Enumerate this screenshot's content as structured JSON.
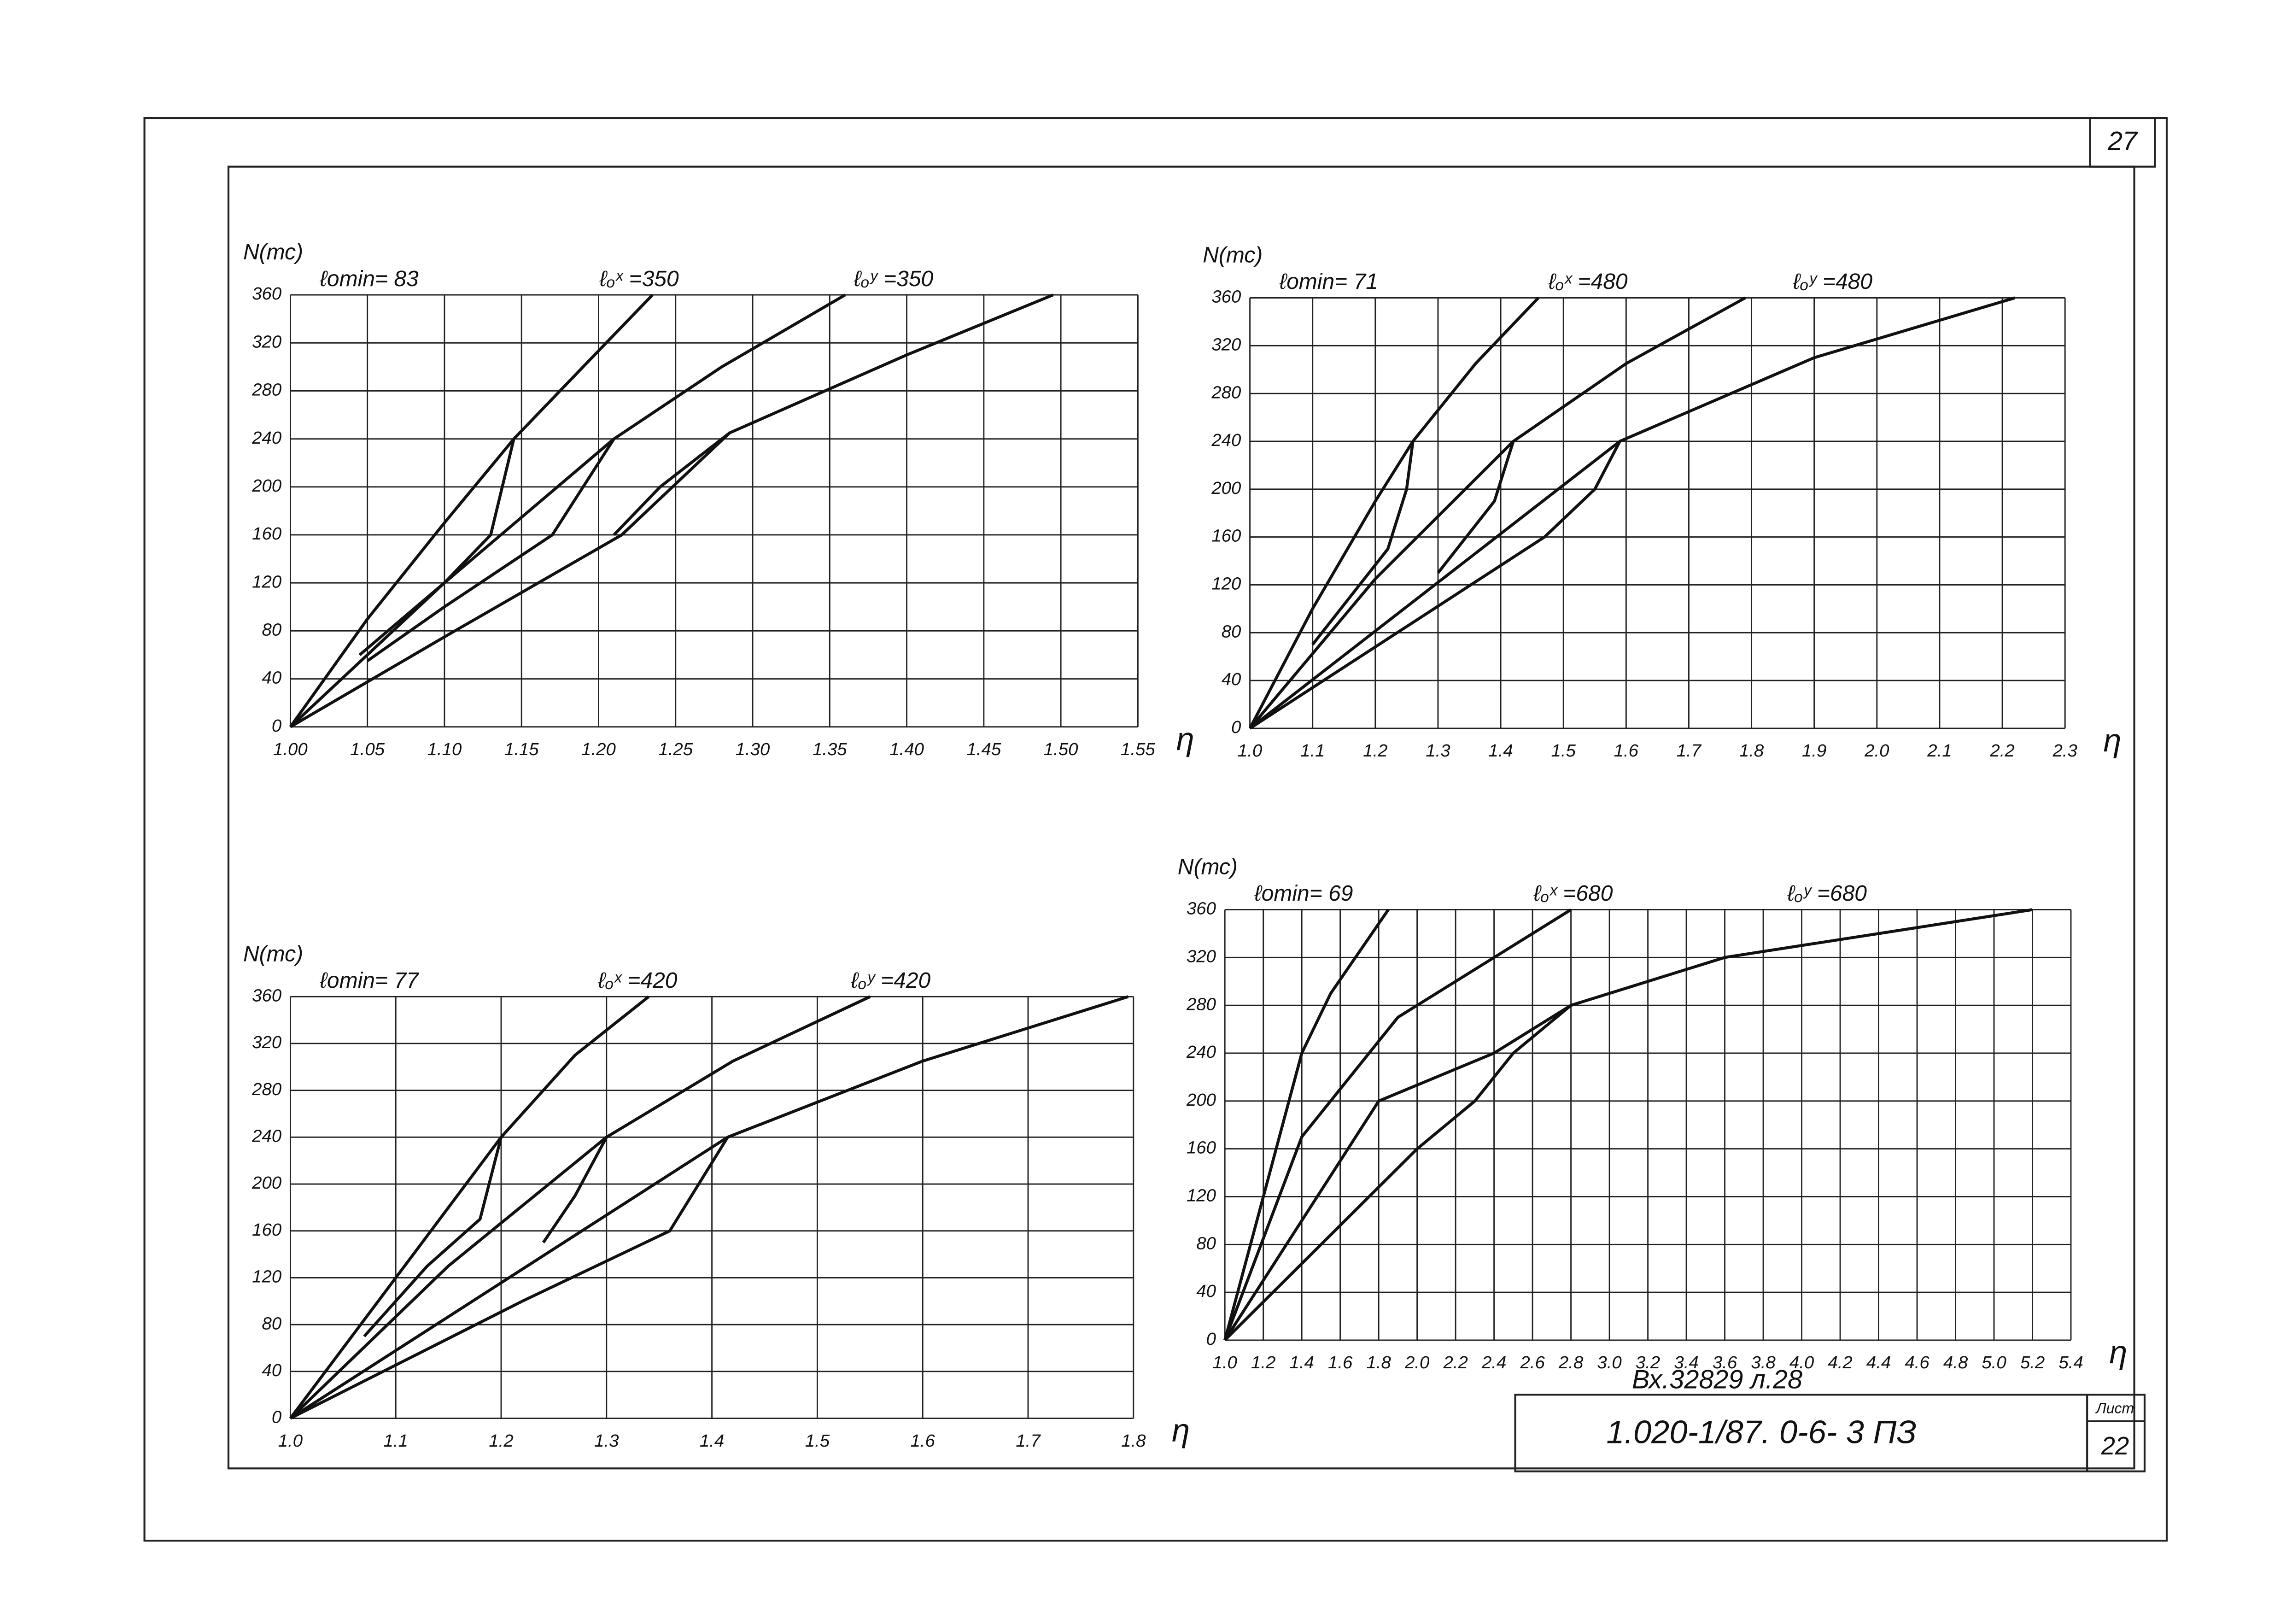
{
  "chart_data": [
    {
      "type": "line",
      "y_label": "N(тс)",
      "x_label": "η",
      "annotations": [
        "ℓomin= 83",
        "ℓₒˣ =350",
        "ℓₒʸ =350"
      ],
      "xlim": [
        1.0,
        1.55
      ],
      "ylim": [
        0,
        360
      ],
      "grid": true,
      "xticks": [
        {
          "value": 1.0,
          "label": "1.00"
        },
        1.05,
        {
          "value": 1.1,
          "label": "1.10"
        },
        1.15,
        {
          "value": 1.2,
          "label": "1.20"
        },
        1.25,
        {
          "value": 1.3,
          "label": "1.30"
        },
        1.35,
        {
          "value": 1.4,
          "label": "1.40"
        },
        1.45,
        {
          "value": 1.5,
          "label": "1.50"
        },
        1.55
      ],
      "yticks": [
        0,
        40,
        80,
        120,
        160,
        200,
        240,
        280,
        320,
        360
      ],
      "series": [
        {
          "color": "#111",
          "x": [
            1.0,
            1.05,
            1.1,
            1.145,
            1.19,
            1.235
          ],
          "values": [
            0,
            90,
            170,
            240,
            300,
            360
          ]
        },
        {
          "color": "#111",
          "x": [
            1.0,
            1.1,
            1.21,
            1.28,
            1.36
          ],
          "values": [
            0,
            120,
            240,
            300,
            360
          ]
        },
        {
          "color": "#111",
          "x": [
            1.0,
            1.1,
            1.215,
            1.285,
            1.4,
            1.495
          ],
          "values": [
            0,
            75,
            160,
            245,
            310,
            360
          ]
        },
        {
          "color": "#111",
          "x": [
            1.045,
            1.1,
            1.13,
            1.145
          ],
          "values": [
            60,
            120,
            160,
            240
          ]
        },
        {
          "color": "#111",
          "x": [
            1.05,
            1.1,
            1.17,
            1.21
          ],
          "values": [
            55,
            100,
            160,
            240
          ]
        },
        {
          "color": "#111",
          "x": [
            1.21,
            1.24,
            1.285
          ],
          "values": [
            160,
            200,
            245
          ]
        }
      ]
    },
    {
      "type": "line",
      "y_label": "N(тс)",
      "x_label": "η",
      "annotations": [
        "ℓomin= 71",
        "ℓₒˣ =480",
        "ℓₒʸ =480"
      ],
      "xlim": [
        1.0,
        2.3
      ],
      "ylim": [
        0,
        360
      ],
      "grid": true,
      "xticks": [
        {
          "value": 1.0,
          "label": "1.0"
        },
        1.1,
        1.2,
        1.3,
        1.4,
        1.5,
        1.6,
        1.7,
        1.8,
        1.9,
        {
          "value": 2.0,
          "label": "2.0"
        },
        2.1,
        2.2,
        2.3
      ],
      "yticks": [
        0,
        40,
        80,
        120,
        160,
        200,
        240,
        280,
        320,
        360
      ],
      "series": [
        {
          "color": "#111",
          "x": [
            1.0,
            1.1,
            1.2,
            1.26,
            1.36,
            1.46
          ],
          "values": [
            0,
            100,
            190,
            240,
            305,
            360
          ]
        },
        {
          "color": "#111",
          "x": [
            1.0,
            1.2,
            1.42,
            1.6,
            1.79
          ],
          "values": [
            0,
            125,
            240,
            305,
            360
          ]
        },
        {
          "color": "#111",
          "x": [
            1.0,
            1.59,
            1.9,
            2.22
          ],
          "values": [
            0,
            240,
            310,
            360
          ]
        },
        {
          "color": "#111",
          "x": [
            1.1,
            1.22,
            1.25,
            1.26
          ],
          "values": [
            70,
            150,
            200,
            240
          ]
        },
        {
          "color": "#111",
          "x": [
            1.3,
            1.39,
            1.42
          ],
          "values": [
            130,
            190,
            240
          ]
        },
        {
          "color": "#111",
          "x": [
            1.0,
            1.47,
            1.55,
            1.59
          ],
          "values": [
            0,
            160,
            200,
            240
          ]
        }
      ]
    },
    {
      "type": "line",
      "y_label": "N(тс)",
      "x_label": "η",
      "annotations": [
        "ℓomin= 77",
        "ℓₒˣ =420",
        "ℓₒʸ =420"
      ],
      "xlim": [
        1.0,
        1.8
      ],
      "ylim": [
        0,
        360
      ],
      "grid": true,
      "xticks": [
        {
          "value": 1.0,
          "label": "1.0"
        },
        1.1,
        1.2,
        1.3,
        1.4,
        1.5,
        1.6,
        1.7,
        1.8
      ],
      "yticks": [
        0,
        40,
        80,
        120,
        160,
        200,
        240,
        280,
        320,
        360
      ],
      "series": [
        {
          "color": "#111",
          "x": [
            1.0,
            1.1,
            1.2,
            1.27,
            1.34
          ],
          "values": [
            0,
            120,
            240,
            310,
            360
          ]
        },
        {
          "color": "#111",
          "x": [
            1.0,
            1.15,
            1.3,
            1.42,
            1.55
          ],
          "values": [
            0,
            130,
            240,
            305,
            360
          ]
        },
        {
          "color": "#111",
          "x": [
            1.0,
            1.415,
            1.6,
            1.795
          ],
          "values": [
            0,
            240,
            305,
            360
          ]
        },
        {
          "color": "#111",
          "x": [
            1.07,
            1.13,
            1.18,
            1.2
          ],
          "values": [
            70,
            130,
            170,
            240
          ]
        },
        {
          "color": "#111",
          "x": [
            1.24,
            1.27,
            1.3
          ],
          "values": [
            150,
            190,
            240
          ]
        },
        {
          "color": "#111",
          "x": [
            1.0,
            1.22,
            1.36,
            1.415
          ],
          "values": [
            0,
            100,
            160,
            240
          ]
        }
      ]
    },
    {
      "type": "line",
      "y_label": "N(тс)",
      "x_label": "η",
      "annotations": [
        "ℓomin= 69",
        "ℓₒˣ =680",
        "ℓₒʸ =680"
      ],
      "xlim": [
        1.0,
        5.4
      ],
      "ylim": [
        0,
        360
      ],
      "grid": true,
      "xticks": [
        {
          "value": 1.0,
          "label": "1.0"
        },
        1.2,
        1.4,
        1.6,
        1.8,
        {
          "value": 2.0,
          "label": "2.0"
        },
        2.2,
        2.4,
        2.6,
        2.8,
        {
          "value": 3.0,
          "label": "3.0"
        },
        3.2,
        3.4,
        3.6,
        3.8,
        {
          "value": 4.0,
          "label": "4.0"
        },
        4.2,
        4.4,
        4.6,
        4.8,
        {
          "value": 5.0,
          "label": "5.0"
        },
        5.2,
        5.4
      ],
      "yticks": [
        0,
        40,
        80,
        120,
        160,
        200,
        240,
        280,
        320,
        360
      ],
      "series": [
        {
          "color": "#111",
          "x": [
            1.0,
            1.2,
            1.4,
            1.55,
            1.85
          ],
          "values": [
            0,
            120,
            240,
            290,
            360
          ]
        },
        {
          "color": "#111",
          "x": [
            1.0,
            1.4,
            1.9,
            2.2,
            2.8
          ],
          "values": [
            0,
            170,
            270,
            300,
            360
          ]
        },
        {
          "color": "#111",
          "x": [
            1.0,
            1.8,
            2.4,
            2.8,
            3.6,
            5.2
          ],
          "values": [
            0,
            200,
            240,
            280,
            320,
            360
          ]
        },
        {
          "color": "#111",
          "x": [
            1.0,
            2.0,
            2.3,
            2.5,
            2.8
          ],
          "values": [
            0,
            160,
            200,
            240,
            280
          ]
        }
      ]
    }
  ],
  "page_number": "27",
  "stamp": {
    "inventory": "Вх.32829 л.28",
    "code": "1.020-1/87. 0-6- 3 ПЗ",
    "sheet_label": "Лист",
    "sheet": "22"
  }
}
